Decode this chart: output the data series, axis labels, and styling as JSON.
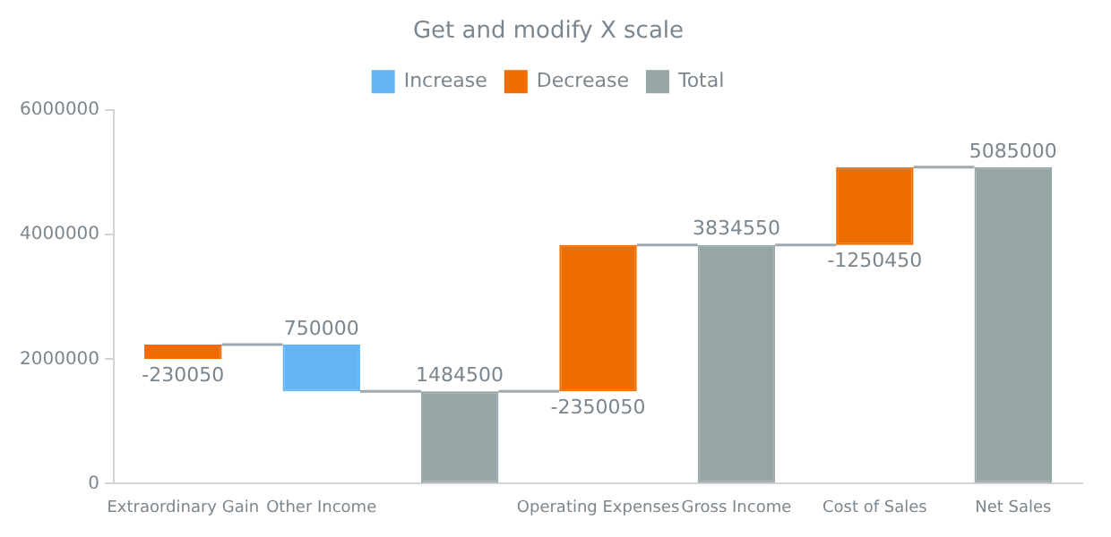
{
  "chart_data": {
    "type": "bar",
    "title": "Get and modify X scale",
    "categories": [
      "Extraordinary Gain",
      "Other Income",
      null,
      "Operating Expenses",
      "Gross Income",
      "Cost of Sales",
      "Net Sales"
    ],
    "series": [
      {
        "name": "Increase",
        "color": "#64b5f6",
        "values": [
          null,
          750000,
          null,
          null,
          null,
          null,
          null
        ],
        "base": [
          null,
          1484500,
          null,
          null,
          null,
          null,
          null
        ]
      },
      {
        "name": "Decrease",
        "color": "#ef6c00",
        "values": [
          -230050,
          null,
          null,
          -2350050,
          null,
          -1250450,
          null
        ],
        "base": [
          2234500,
          null,
          null,
          3834550,
          null,
          5085000,
          null
        ]
      },
      {
        "name": "Total",
        "color": "#96a6a6",
        "values": [
          null,
          null,
          1484500,
          null,
          3834550,
          null,
          5085000
        ],
        "base": [
          null,
          null,
          0,
          null,
          0,
          null,
          0
        ]
      }
    ],
    "ylim": [
      0,
      6000000
    ],
    "yticks": [
      0,
      2000000,
      4000000,
      6000000
    ],
    "grid": false,
    "legend": "top",
    "data_labels": true
  }
}
